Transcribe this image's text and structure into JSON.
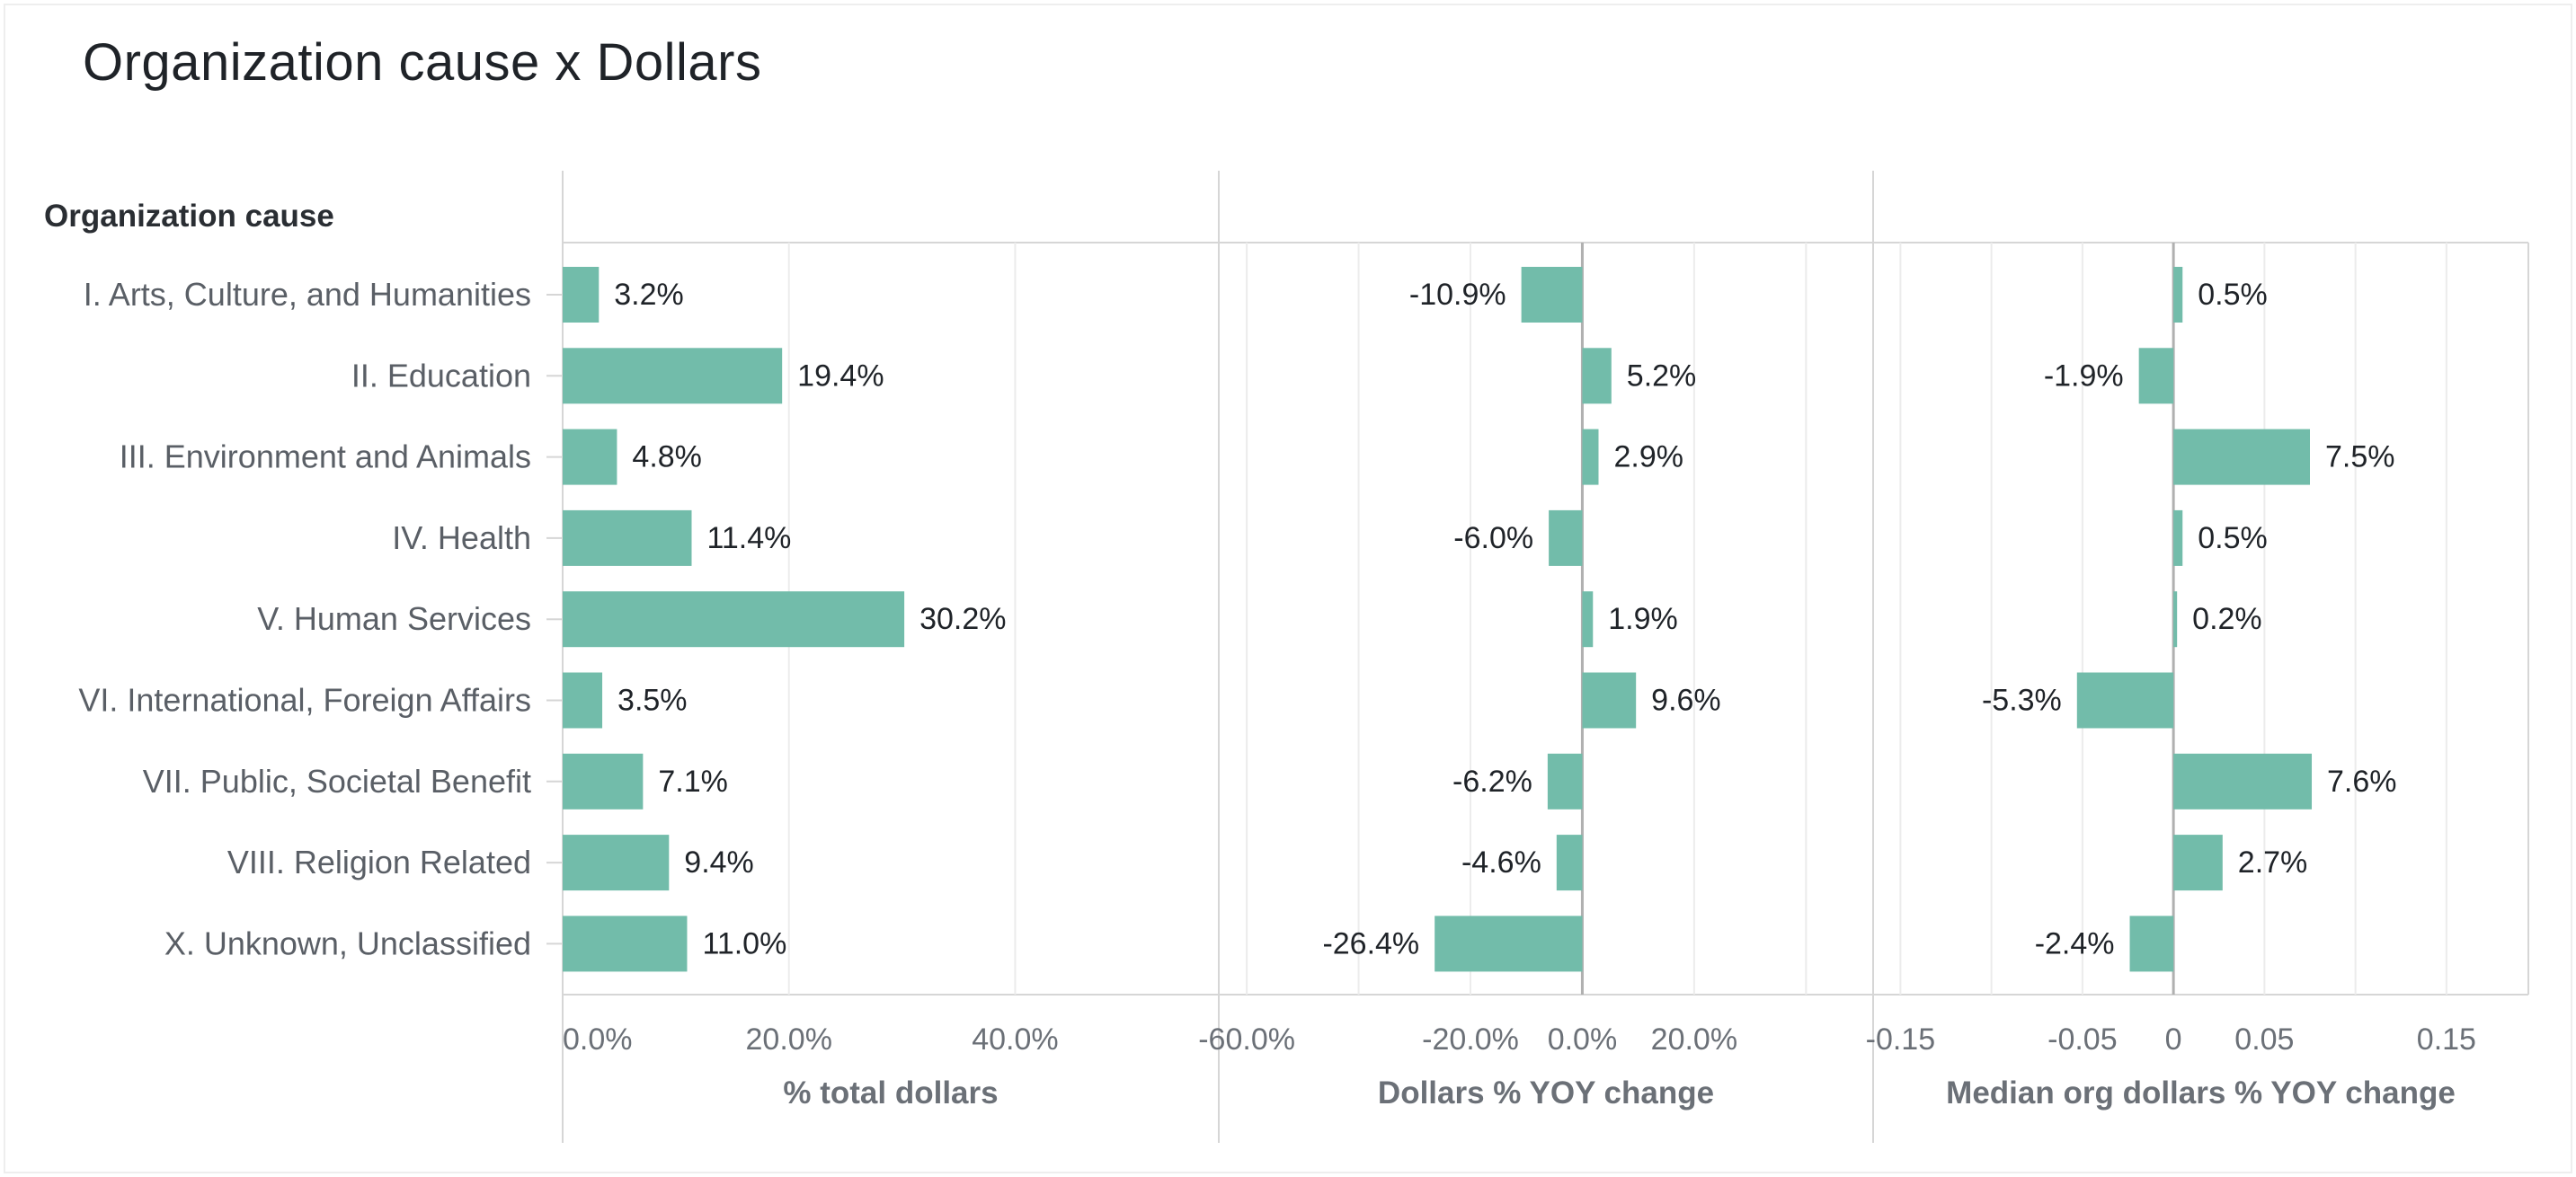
{
  "title": "Organization cause x Dollars",
  "chart_data": {
    "type": "bar",
    "orientation": "horizontal",
    "category_header": "Organization cause",
    "categories": [
      "I. Arts, Culture, and Humanities",
      "II. Education",
      "III. Environment and Animals",
      "IV. Health",
      "V. Human Services",
      "VI. International, Foreign Affairs",
      "VII. Public, Societal Benefit",
      "VIII. Religion Related",
      "X. Unknown, Unclassified"
    ],
    "panels": [
      {
        "xlabel": "% total dollars",
        "xlim": [
          0,
          0.58
        ],
        "ticks": [
          0,
          0.2,
          0.4
        ],
        "tick_labels": [
          "0.0%",
          "20.0%",
          "40.0%"
        ],
        "gridlines": [
          0.2,
          0.4
        ],
        "values": [
          0.032,
          0.194,
          0.048,
          0.114,
          0.302,
          0.035,
          0.071,
          0.094,
          0.11
        ],
        "labels": [
          "3.2%",
          "19.4%",
          "4.8%",
          "11.4%",
          "30.2%",
          "3.5%",
          "7.1%",
          "9.4%",
          "11.0%"
        ]
      },
      {
        "xlabel": "Dollars % YOY change",
        "xlim": [
          -0.65,
          0.52
        ],
        "ticks": [
          -0.6,
          -0.2,
          0,
          0.2
        ],
        "tick_labels": [
          "-60.0%",
          "-20.0%",
          "0.0%",
          "20.0%"
        ],
        "gridlines": [
          -0.6,
          -0.4,
          -0.2,
          0.2,
          0.4
        ],
        "values": [
          -0.109,
          0.052,
          0.029,
          -0.06,
          0.019,
          0.096,
          -0.062,
          -0.046,
          -0.264
        ],
        "labels": [
          "-10.9%",
          "5.2%",
          "2.9%",
          "-6.0%",
          "1.9%",
          "9.6%",
          "-6.2%",
          "-4.6%",
          "-26.4%"
        ]
      },
      {
        "xlabel": "Median org dollars % YOY change",
        "xlim": [
          -0.165,
          0.195
        ],
        "ticks": [
          -0.15,
          -0.05,
          0,
          0.05,
          0.15
        ],
        "tick_labels": [
          "-0.15",
          "-0.05",
          "0",
          "0.05",
          "0.15"
        ],
        "gridlines": [
          -0.15,
          -0.1,
          -0.05,
          0.05,
          0.1,
          0.15
        ],
        "values": [
          0.005,
          -0.019,
          0.075,
          0.005,
          0.002,
          -0.053,
          0.076,
          0.027,
          -0.024
        ],
        "labels": [
          "0.5%",
          "-1.9%",
          "7.5%",
          "0.5%",
          "0.2%",
          "-5.3%",
          "7.6%",
          "2.7%",
          "-2.4%"
        ]
      }
    ],
    "bar_color": "#72bcaa",
    "grid": true,
    "legend": "none"
  }
}
